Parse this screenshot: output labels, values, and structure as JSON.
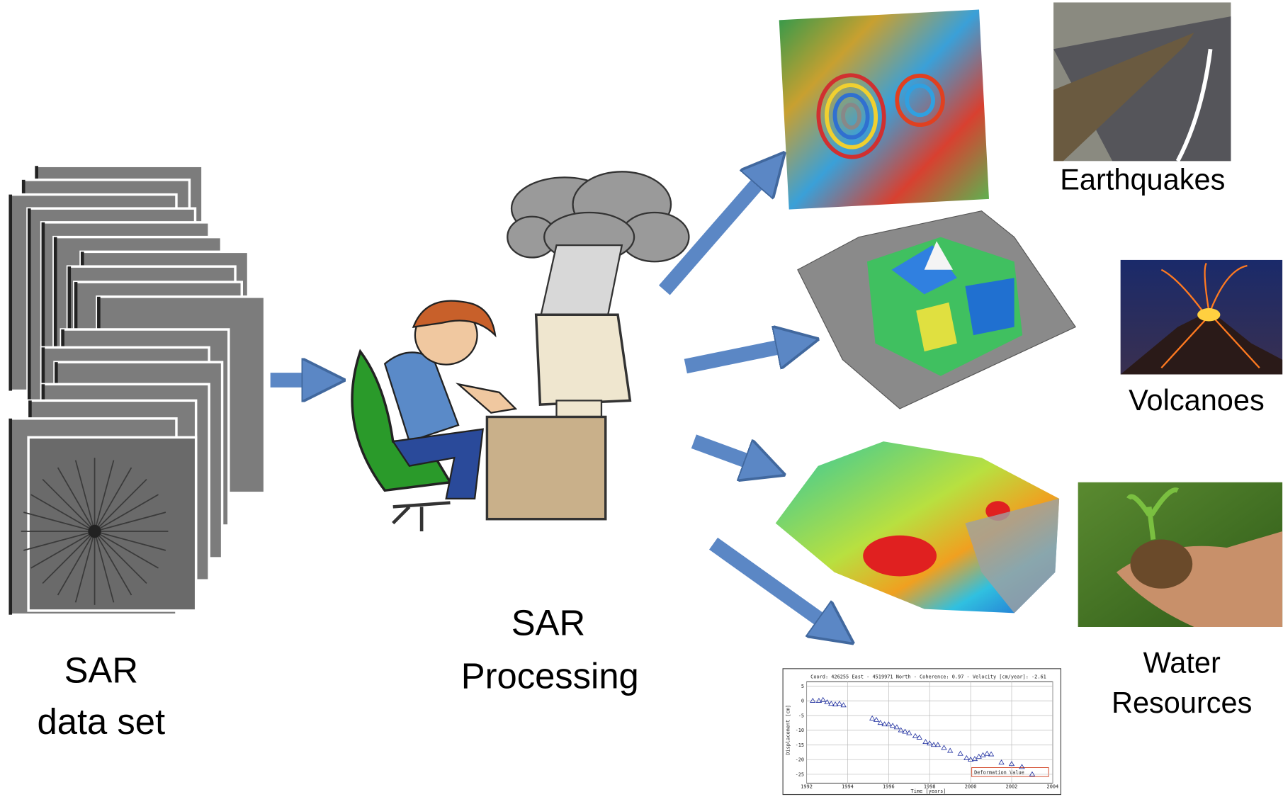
{
  "stack_label": {
    "line1": "SAR",
    "line2": "data set"
  },
  "processing_label": {
    "line1": "SAR",
    "line2": "Processing"
  },
  "applications": {
    "earthquakes": "Earthquakes",
    "volcanoes": "Volcanoes",
    "water": {
      "line1": "Water",
      "line2": "Resources"
    }
  },
  "timeseries": {
    "title": "Coord: 426255 East - 4519971 North - Coherence: 0.97 - Velocity [cm/year]: -2.61",
    "x_label": "Time [years]",
    "y_label": "Displacement [cm]",
    "legend": "Deformation Value",
    "xlim": [
      1992,
      2004
    ],
    "ylim": [
      -28,
      6.5
    ],
    "xticks": [
      1992,
      1994,
      1996,
      1998,
      2000,
      2002,
      2004
    ],
    "yticks": [
      5,
      0,
      -5,
      -10,
      -15,
      -20,
      -25
    ],
    "x": [
      1992.3,
      1992.6,
      1992.8,
      1993,
      1993.2,
      1993.4,
      1993.6,
      1993.8,
      1995.2,
      1995.4,
      1995.6,
      1995.8,
      1996,
      1996.2,
      1996.4,
      1996.6,
      1996.8,
      1997,
      1997.3,
      1997.5,
      1997.8,
      1998,
      1998.2,
      1998.4,
      1998.7,
      1999,
      1999.5,
      1999.8,
      2000,
      2000.2,
      2000.4,
      2000.6,
      2000.8,
      2001,
      2001.5,
      2002,
      2002.5,
      2003
    ],
    "values": [
      0,
      0,
      0.3,
      -0.5,
      -1,
      -1.2,
      -1,
      -1.5,
      -6,
      -6.5,
      -7.5,
      -8,
      -8,
      -8.5,
      -9,
      -10,
      -10.5,
      -11,
      -12,
      -12.5,
      -14,
      -14.5,
      -15,
      -15,
      -16,
      -17,
      -18,
      -19.5,
      -20,
      -19.8,
      -19,
      -18.5,
      -18,
      -18.2,
      -21,
      -21.5,
      -22.5,
      -25
    ]
  }
}
